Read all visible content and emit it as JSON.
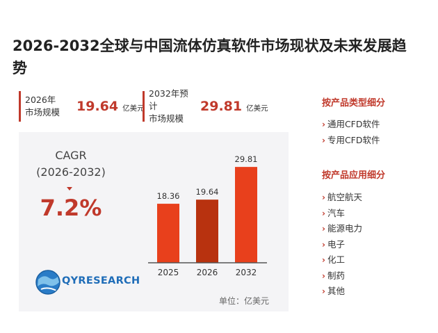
{
  "page": {
    "title": "2026-2032全球与中国流体仿真软件市场现状及未来发展趋势"
  },
  "stats": [
    {
      "label": "2026年\n市场规模",
      "value": "19.64",
      "unit": "亿美元"
    },
    {
      "label": "2032年预计\n市场规模",
      "value": "29.81",
      "unit": "亿美元"
    }
  ],
  "cagr": {
    "label": "CAGR",
    "range": "(2026-2032)",
    "value": "7.2%"
  },
  "logo": {
    "text": "QYRESEARCH",
    "icon": "globe-icon"
  },
  "unit_note": "单位：亿美元",
  "chart_data": {
    "type": "bar",
    "categories": [
      "2025",
      "2026",
      "2032"
    ],
    "values": [
      18.36,
      19.64,
      29.81
    ],
    "data_labels": [
      "18.36",
      "19.64",
      "29.81"
    ],
    "bar_colors": [
      "#e8401c",
      "#b8320f",
      "#e8401c"
    ],
    "ylim": [
      0,
      32
    ],
    "grid": false,
    "legend": "none",
    "title": "",
    "xlabel": "",
    "ylabel": ""
  },
  "sidebar": {
    "type_heading": "按产品类型细分",
    "type_items": [
      "通用CFD软件",
      "专用CFD软件"
    ],
    "app_heading": "按产品应用细分",
    "app_items": [
      "航空航天",
      "汽车",
      "能源电力",
      "电子",
      "化工",
      "制药",
      "其他"
    ]
  },
  "colors": {
    "accent": "#c0392b",
    "panel_bg": "#f4f4f6",
    "logo_blue": "#1f6db8"
  }
}
